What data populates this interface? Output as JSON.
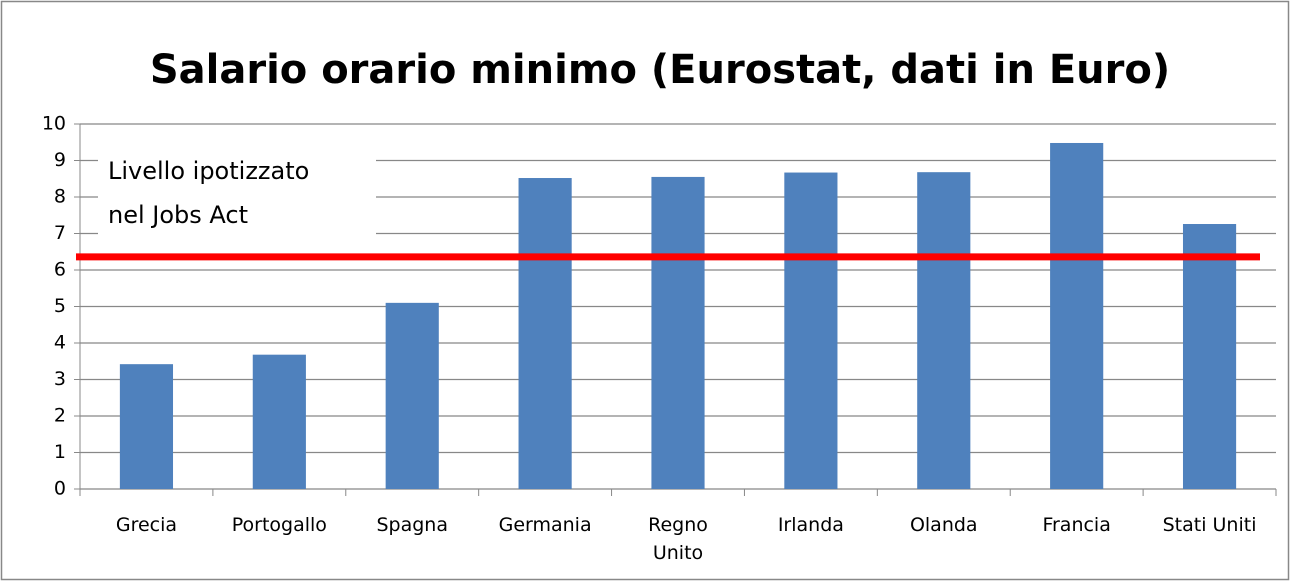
{
  "chart_data": {
    "type": "bar",
    "title": "Salario orario minimo (Eurostat, dati in Euro)",
    "categories": [
      "Grecia",
      "Portogallo",
      "Spagna",
      "Germania",
      "Regno Unito",
      "Irlanda",
      "Olanda",
      "Francia",
      "Stati Uniti"
    ],
    "values": [
      3.42,
      3.68,
      5.1,
      8.52,
      8.55,
      8.67,
      8.68,
      9.48,
      7.26
    ],
    "color": "#4f81bd",
    "ylim": [
      0,
      10
    ],
    "yticks": [
      0,
      1,
      2,
      3,
      4,
      5,
      6,
      7,
      8,
      9,
      10
    ],
    "grid": true,
    "reference_line": {
      "value": 6.36,
      "color": "#ff0000",
      "label": [
        "Livello ipotizzato",
        "nel Jobs Act"
      ]
    }
  }
}
